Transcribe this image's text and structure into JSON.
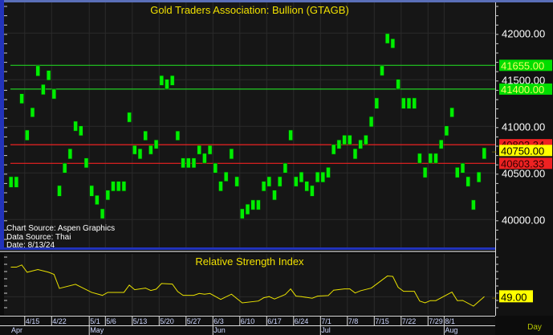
{
  "colors": {
    "bar": "#00ee00",
    "support": "#22cc22",
    "resistance": "#ee2222",
    "rsi_line": "#e8e000",
    "last_tag": "#ffff00",
    "green_tag": "#00dd00",
    "red_tag": "#ee2222",
    "frame": "#2233bb"
  },
  "chart_data": [
    {
      "type": "bar",
      "subtype": "high-low range bars",
      "title": "Gold Traders Association: Bullion (GTAGB)",
      "ylabel": "",
      "ylim": [
        39800,
        42350
      ],
      "yticks": [
        "42000.00",
        "41500.00",
        "41000.00",
        "40500.00",
        "40000.00"
      ],
      "ytick_values": [
        42000,
        41500,
        41000,
        40500,
        40000
      ],
      "grid": true,
      "bars_high_low": [
        [
          40460,
          40345
        ],
        [
          40460,
          40345
        ],
        [
          41350,
          41245
        ],
        [
          40960,
          40850
        ],
        [
          41200,
          41100
        ],
        [
          41650,
          41540
        ],
        [
          41450,
          41340
        ],
        [
          41600,
          41495
        ],
        [
          41400,
          41295
        ],
        [
          40365,
          40250
        ],
        [
          40605,
          40500
        ],
        [
          40760,
          40650
        ],
        [
          41055,
          40950
        ],
        [
          41005,
          40900
        ],
        [
          40660,
          40555
        ],
        [
          40365,
          40250
        ],
        [
          40260,
          40160
        ],
        [
          40115,
          40010
        ],
        [
          40315,
          40210
        ],
        [
          40410,
          40305
        ],
        [
          40410,
          40305
        ],
        [
          40410,
          40305
        ],
        [
          41150,
          41045
        ],
        [
          40795,
          40700
        ],
        [
          40760,
          40650
        ],
        [
          40950,
          40850
        ],
        [
          40795,
          40700
        ],
        [
          40855,
          40760
        ],
        [
          41545,
          41440
        ],
        [
          41505,
          41400
        ],
        [
          41545,
          41440
        ],
        [
          40950,
          40850
        ],
        [
          40660,
          40555
        ],
        [
          40660,
          40555
        ],
        [
          40660,
          40555
        ],
        [
          40795,
          40700
        ],
        [
          40710,
          40605
        ],
        [
          40795,
          40700
        ],
        [
          40605,
          40500
        ],
        [
          40410,
          40305
        ],
        [
          40510,
          40410
        ],
        [
          40760,
          40650
        ],
        [
          40460,
          40355
        ],
        [
          40115,
          40010
        ],
        [
          40165,
          40055
        ],
        [
          40210,
          40105
        ],
        [
          40210,
          40105
        ],
        [
          40410,
          40305
        ],
        [
          40460,
          40355
        ],
        [
          40315,
          40210
        ],
        [
          40460,
          40355
        ],
        [
          40605,
          40500
        ],
        [
          40960,
          40850
        ],
        [
          40460,
          40355
        ],
        [
          40510,
          40400
        ],
        [
          40410,
          40305
        ],
        [
          40365,
          40250
        ],
        [
          40510,
          40400
        ],
        [
          40510,
          40400
        ],
        [
          40560,
          40450
        ],
        [
          40805,
          40700
        ],
        [
          40855,
          40760
        ],
        [
          40905,
          40805
        ],
        [
          40905,
          40805
        ],
        [
          40760,
          40650
        ],
        [
          40855,
          40760
        ],
        [
          40905,
          40805
        ],
        [
          41105,
          40995
        ],
        [
          41305,
          41190
        ],
        [
          41650,
          41545
        ],
        [
          41995,
          41890
        ],
        [
          41940,
          41840
        ],
        [
          41505,
          41400
        ],
        [
          41305,
          41190
        ],
        [
          41305,
          41190
        ],
        [
          41305,
          41190
        ],
        [
          40710,
          40605
        ],
        [
          40560,
          40450
        ],
        [
          40710,
          40605
        ],
        [
          40710,
          40605
        ],
        [
          40855,
          40760
        ],
        [
          41005,
          40900
        ],
        [
          41200,
          41100
        ],
        [
          40560,
          40450
        ],
        [
          40605,
          40500
        ],
        [
          40460,
          40355
        ],
        [
          40210,
          40105
        ],
        [
          40510,
          40400
        ],
        [
          40770,
          40650
        ]
      ],
      "horizontal_lines": [
        {
          "value": 41655,
          "label": "41655.00",
          "kind": "support"
        },
        {
          "value": 41400,
          "label": "41400.00",
          "kind": "support"
        },
        {
          "value": 40803.34,
          "label": "40803.34",
          "kind": "resistance"
        },
        {
          "value": 40603.33,
          "label": "40603.33",
          "kind": "resistance"
        }
      ],
      "last_value": 40750,
      "last_label": "40750.00",
      "annotations": [
        "Chart Source: Aspen Graphics",
        "Data Source: Thai",
        "Date: 8/13/24"
      ]
    },
    {
      "type": "line",
      "title": "Relative Strength Index",
      "ylim": [
        30,
        92
      ],
      "last_value": 49,
      "last_label": "49.00",
      "points": [
        [
          0,
          79.8
        ],
        [
          1,
          79.8
        ],
        [
          2,
          82.1
        ],
        [
          3,
          74.5
        ],
        [
          5,
          77.3
        ],
        [
          7,
          74.5
        ],
        [
          8,
          72.3
        ],
        [
          9,
          57.7
        ],
        [
          12,
          61.9
        ],
        [
          15,
          53.5
        ],
        [
          17,
          50.4
        ],
        [
          18,
          53.5
        ],
        [
          21,
          53.5
        ],
        [
          22,
          61.1
        ],
        [
          23,
          56.3
        ],
        [
          25,
          58.0
        ],
        [
          26,
          55.5
        ],
        [
          27,
          56.9
        ],
        [
          28,
          62.8
        ],
        [
          30,
          62.2
        ],
        [
          31,
          54.4
        ],
        [
          32,
          50.4
        ],
        [
          34,
          50.4
        ],
        [
          35,
          52.4
        ],
        [
          36,
          51.6
        ],
        [
          37,
          52.4
        ],
        [
          39,
          46.2
        ],
        [
          41,
          51.6
        ],
        [
          43,
          42.6
        ],
        [
          46,
          44.5
        ],
        [
          47,
          47.9
        ],
        [
          48,
          49.1
        ],
        [
          49,
          46.6
        ],
        [
          51,
          51.3
        ],
        [
          52,
          57.1
        ],
        [
          53,
          49.6
        ],
        [
          54,
          49.1
        ],
        [
          56,
          47.4
        ],
        [
          57,
          49.6
        ],
        [
          59,
          50.2
        ],
        [
          60,
          55.8
        ],
        [
          62,
          57.1
        ],
        [
          63,
          57.1
        ],
        [
          64,
          52.9
        ],
        [
          65,
          55.2
        ],
        [
          67,
          58.0
        ],
        [
          68,
          62.2
        ],
        [
          69,
          66.4
        ],
        [
          70,
          70.6
        ],
        [
          71,
          70.1
        ],
        [
          72,
          58.8
        ],
        [
          73,
          54.6
        ],
        [
          75,
          54.6
        ],
        [
          76,
          44.5
        ],
        [
          77,
          42.6
        ],
        [
          78,
          44.9
        ],
        [
          79,
          44.9
        ],
        [
          82,
          53.8
        ],
        [
          83,
          44.9
        ],
        [
          84,
          45.1
        ],
        [
          86,
          39.2
        ],
        [
          88,
          49.0
        ]
      ]
    }
  ],
  "x_axis": {
    "dates": [
      {
        "label": "4/15",
        "bar": 3
      },
      {
        "label": "4/22",
        "bar": 8
      },
      {
        "label": "5/1",
        "bar": 15
      },
      {
        "label": "5/6",
        "bar": 18
      },
      {
        "label": "5/13",
        "bar": 23
      },
      {
        "label": "5/20",
        "bar": 28
      },
      {
        "label": "5/27",
        "bar": 33
      },
      {
        "label": "6/3",
        "bar": 38
      },
      {
        "label": "6/10",
        "bar": 43
      },
      {
        "label": "6/17",
        "bar": 48
      },
      {
        "label": "6/24",
        "bar": 53
      },
      {
        "label": "7/1",
        "bar": 58
      },
      {
        "label": "7/8",
        "bar": 63
      },
      {
        "label": "7/15",
        "bar": 68
      },
      {
        "label": "7/22",
        "bar": 73
      },
      {
        "label": "7/29",
        "bar": 78
      },
      {
        "label": "8/1",
        "bar": 81
      }
    ],
    "months": [
      {
        "label": "Apr",
        "bar": 0
      },
      {
        "label": "May",
        "bar": 15
      },
      {
        "label": "Jun",
        "bar": 38
      },
      {
        "label": "Jul",
        "bar": 58
      },
      {
        "label": "Aug",
        "bar": 81
      }
    ],
    "period": "Day"
  }
}
